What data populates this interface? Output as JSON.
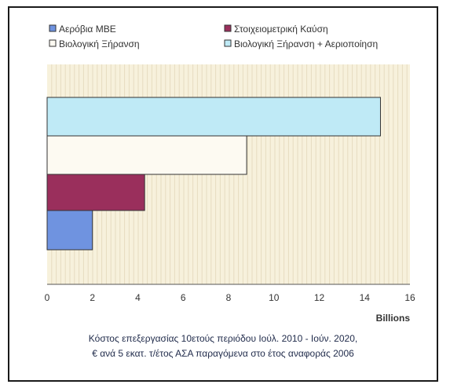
{
  "chart_data": {
    "type": "bar",
    "orientation": "horizontal",
    "series": [
      {
        "name": "Αερόβια ΜΒΕ",
        "value": 2.0,
        "color": "#6f93e0"
      },
      {
        "name": "Στοιχειομετρική Καύση",
        "value": 4.3,
        "color": "#9a2f5c"
      },
      {
        "name": "Βιολογική Ξήρανση",
        "value": 8.8,
        "color": "#fdfaf2"
      },
      {
        "name": "Βιολογική Ξήρανση + Αεριοποίηση",
        "value": 14.7,
        "color": "#bfeaf6"
      }
    ],
    "xlim": [
      0,
      16
    ],
    "x_ticks": [
      "0",
      "2",
      "4",
      "6",
      "8",
      "10",
      "12",
      "14",
      "16"
    ],
    "x_unit": "Billions",
    "grid": "vertical-striped",
    "plot_background": "#f7f1dc",
    "legend_position": "top"
  },
  "caption": {
    "line1": "Κόστος επεξεργασίας 10ετούς περιόδου Ιούλ. 2010 - Ιούν. 2020,",
    "line2": "€ ανά 5 εκατ. τ/έτος ΑΣΑ παραγόμενα στο έτος αναφοράς 2006"
  }
}
